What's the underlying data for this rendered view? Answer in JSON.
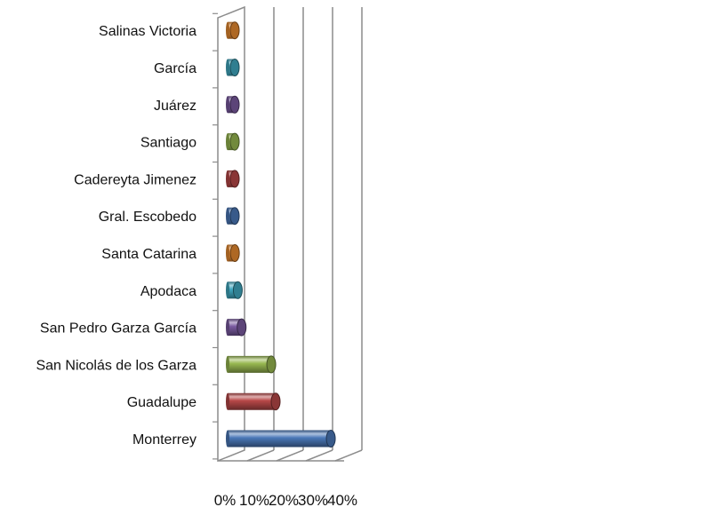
{
  "chart_data": {
    "type": "bar",
    "orientation": "horizontal",
    "style": "3d-cylinder",
    "categories": [
      "Monterrey",
      "Guadalupe",
      "San Nicolás de los Garza",
      "San Pedro Garza García",
      "Apodaca",
      "Santa Catarina",
      "Gral. Escobedo",
      "Cadereyta Jimenez",
      "Santiago",
      "Juárez",
      "García",
      "Salinas Victoria"
    ],
    "values": [
      38.5,
      19.7,
      18.2,
      8.1,
      6.8,
      5.8,
      5.2,
      3.2,
      2.4,
      1.8,
      1.1,
      1.0
    ],
    "colors": [
      "#4a78b8",
      "#b84848",
      "#98b850",
      "#7a5aa0",
      "#40a8c0",
      "#e88a30",
      "#4a78b8",
      "#b84848",
      "#98b850",
      "#7a5aa0",
      "#40a8c0",
      "#e88a30"
    ],
    "x_ticks": [
      "0%",
      "10%",
      "20%",
      "30%",
      "40%"
    ],
    "xlim": [
      0,
      40
    ],
    "grid": true,
    "legend": "none",
    "title": "",
    "xlabel": "",
    "ylabel": ""
  }
}
